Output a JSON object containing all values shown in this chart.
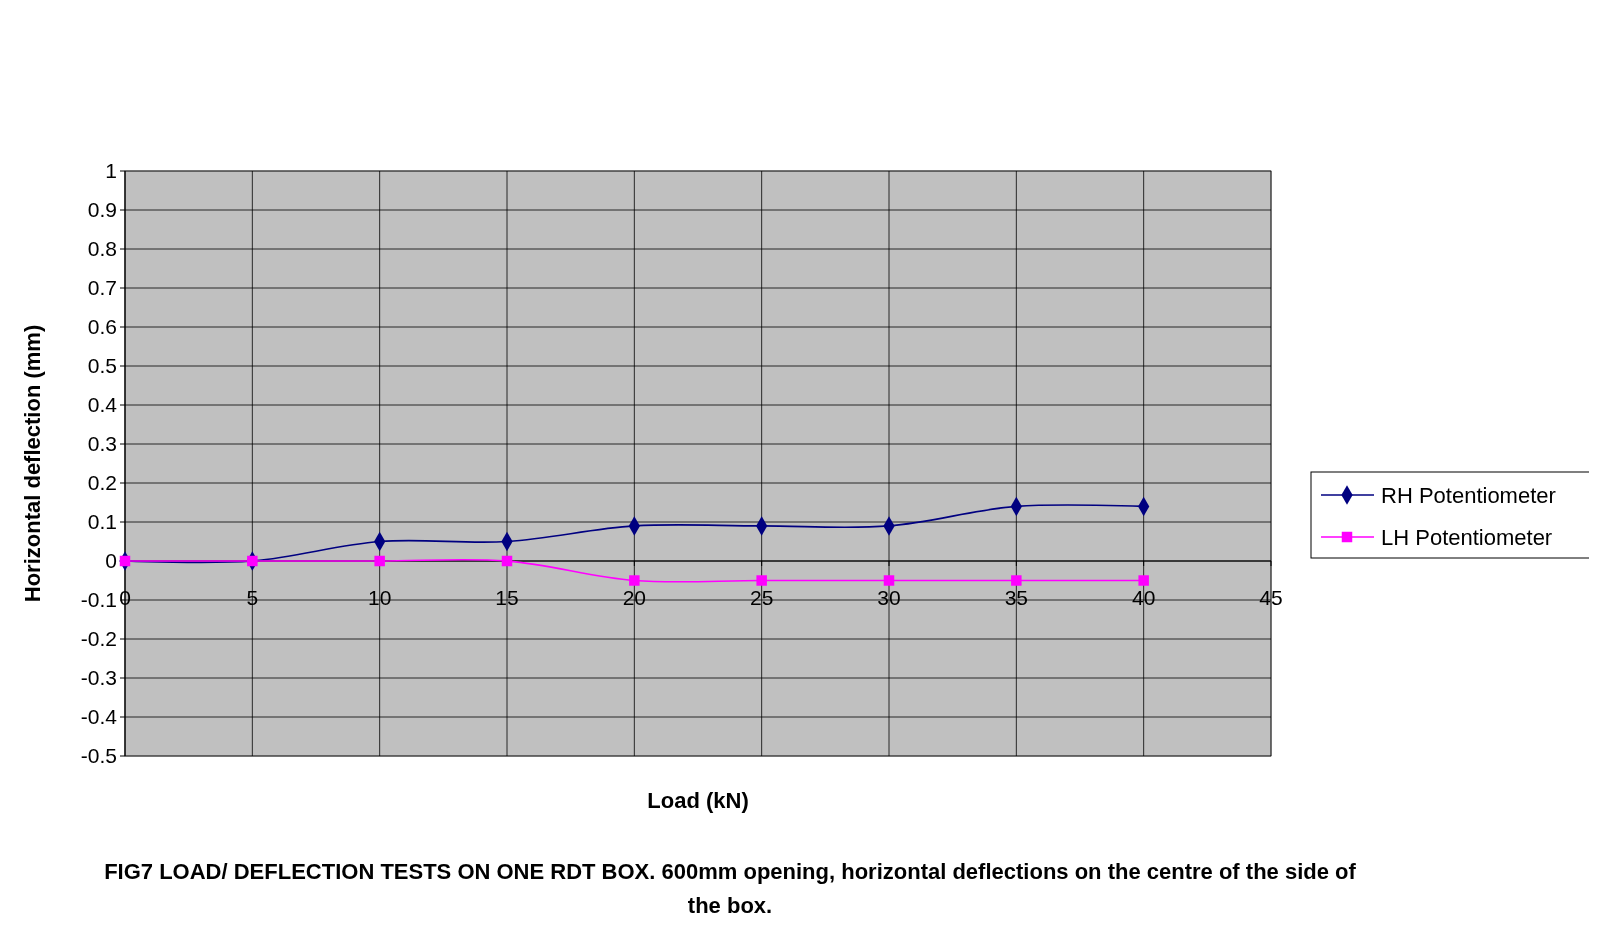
{
  "chart_data": {
    "type": "line",
    "title": "FIG7 LOAD/ DEFLECTION TESTS ON ONE RDT BOX. 600mm opening, horizontal deflections on the centre of the side of the box.",
    "xlabel": "Load (kN)",
    "ylabel": "Horizontal deflection (mm)",
    "x": [
      0,
      5,
      10,
      15,
      20,
      25,
      30,
      35,
      40
    ],
    "series": [
      {
        "name": "RH Potentiometer",
        "color": "#000080",
        "marker": "diamond",
        "values": [
          0,
          0,
          0.05,
          0.05,
          0.09,
          0.09,
          0.09,
          0.14,
          0.14
        ]
      },
      {
        "name": "LH Potentiometer",
        "color": "#ff00ff",
        "marker": "square",
        "values": [
          0,
          0,
          0,
          0,
          -0.05,
          -0.05,
          -0.05,
          -0.05,
          -0.05
        ]
      }
    ],
    "xlim": [
      0,
      45
    ],
    "xticks": [
      0,
      5,
      10,
      15,
      20,
      25,
      30,
      35,
      40,
      45
    ],
    "ylim": [
      -0.5,
      1
    ],
    "yticks": [
      -0.5,
      -0.4,
      -0.3,
      -0.2,
      -0.1,
      0,
      0.1,
      0.2,
      0.3,
      0.4,
      0.5,
      0.6,
      0.7,
      0.8,
      0.9,
      1
    ],
    "grid": true,
    "legend": "right"
  }
}
